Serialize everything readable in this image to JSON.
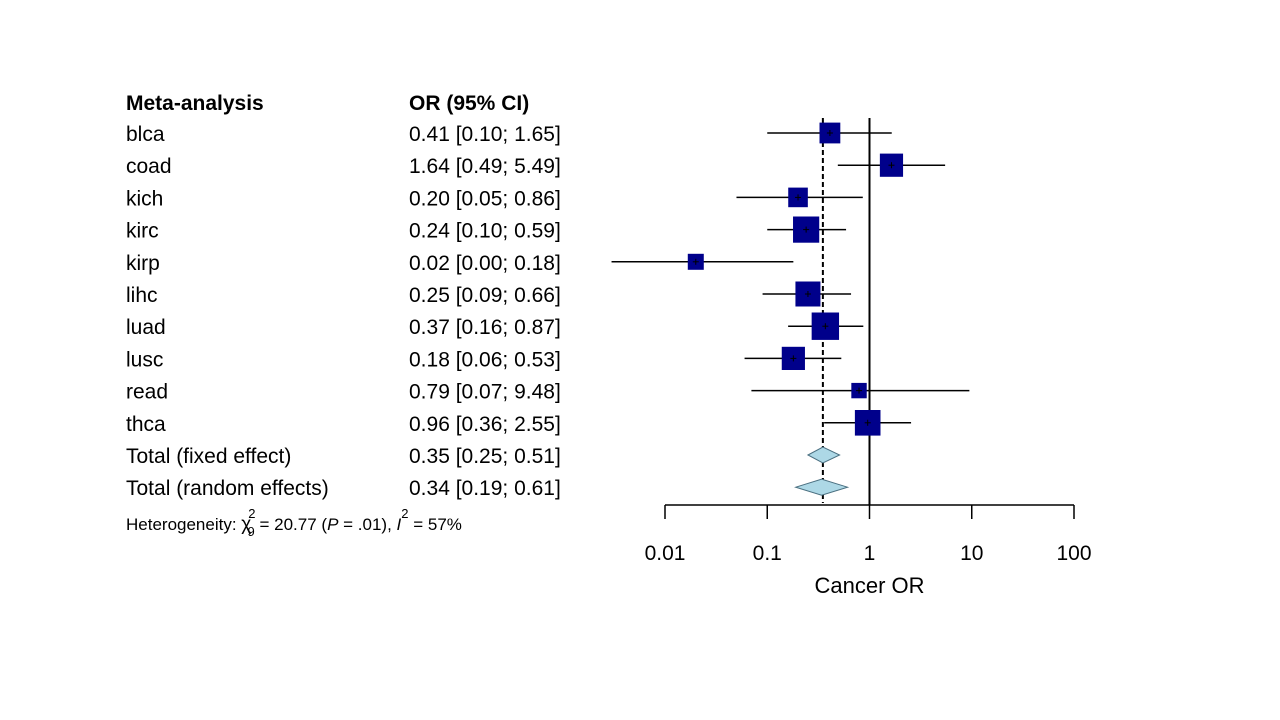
{
  "chart_data": {
    "type": "forest",
    "headers": {
      "study": "Meta-analysis",
      "estimate": "OR (95% CI)"
    },
    "studies": [
      {
        "name": "blca",
        "or": 0.41,
        "lo": 0.1,
        "hi": 1.65,
        "ci_text": "0.41 [0.10; 1.65]",
        "weight": 0.9
      },
      {
        "name": "coad",
        "or": 1.64,
        "lo": 0.49,
        "hi": 5.49,
        "ci_text": "1.64 [0.49; 5.49]",
        "weight": 1.1
      },
      {
        "name": "kich",
        "or": 0.2,
        "lo": 0.05,
        "hi": 0.86,
        "ci_text": "0.20 [0.05; 0.86]",
        "weight": 0.8
      },
      {
        "name": "kirc",
        "or": 0.24,
        "lo": 0.1,
        "hi": 0.59,
        "ci_text": "0.24 [0.10; 0.59]",
        "weight": 1.35
      },
      {
        "name": "kirp",
        "or": 0.02,
        "lo": 0.0,
        "hi": 0.18,
        "ci_text": "0.02 [0.00; 0.18]",
        "weight": 0.5
      },
      {
        "name": "lihc",
        "or": 0.25,
        "lo": 0.09,
        "hi": 0.66,
        "ci_text": "0.25 [0.09; 0.66]",
        "weight": 1.25
      },
      {
        "name": "luad",
        "or": 0.37,
        "lo": 0.16,
        "hi": 0.87,
        "ci_text": "0.37 [0.16; 0.87]",
        "weight": 1.45
      },
      {
        "name": "lusc",
        "or": 0.18,
        "lo": 0.06,
        "hi": 0.53,
        "ci_text": "0.18 [0.06; 0.53]",
        "weight": 1.1
      },
      {
        "name": "read",
        "or": 0.79,
        "lo": 0.07,
        "hi": 9.48,
        "ci_text": "0.79 [0.07; 9.48]",
        "weight": 0.45
      },
      {
        "name": "thca",
        "or": 0.96,
        "lo": 0.36,
        "hi": 2.55,
        "ci_text": "0.96 [0.36; 2.55]",
        "weight": 1.3
      }
    ],
    "summaries": [
      {
        "name": "Total (fixed effect)",
        "or": 0.35,
        "lo": 0.25,
        "hi": 0.51,
        "ci_text": "0.35 [0.25; 0.51]"
      },
      {
        "name": "Total (random effects)",
        "or": 0.34,
        "lo": 0.19,
        "hi": 0.61,
        "ci_text": "0.34 [0.19; 0.61]"
      }
    ],
    "heterogeneity": {
      "prefix": "Heterogeneity: ",
      "chi": "χ",
      "chi_sup": "2",
      "chi_sub": "9",
      "mid": " = 20.77 (",
      "p": "P",
      "p_rest": " = .01), ",
      "i": "I",
      "i_sup": "2",
      "i_rest": " = 57%"
    },
    "xaxis": {
      "scale": "log",
      "ticks": [
        0.01,
        0.1,
        1,
        10,
        100
      ],
      "tick_labels": [
        "0.01",
        "0.1",
        "1",
        "10",
        "100"
      ],
      "label": "Cancer OR",
      "reference_line": 1,
      "pooled_line": 0.35
    },
    "colors": {
      "square": "#00008b",
      "diamond_fill": "#add8e6",
      "line": "#000000"
    }
  }
}
